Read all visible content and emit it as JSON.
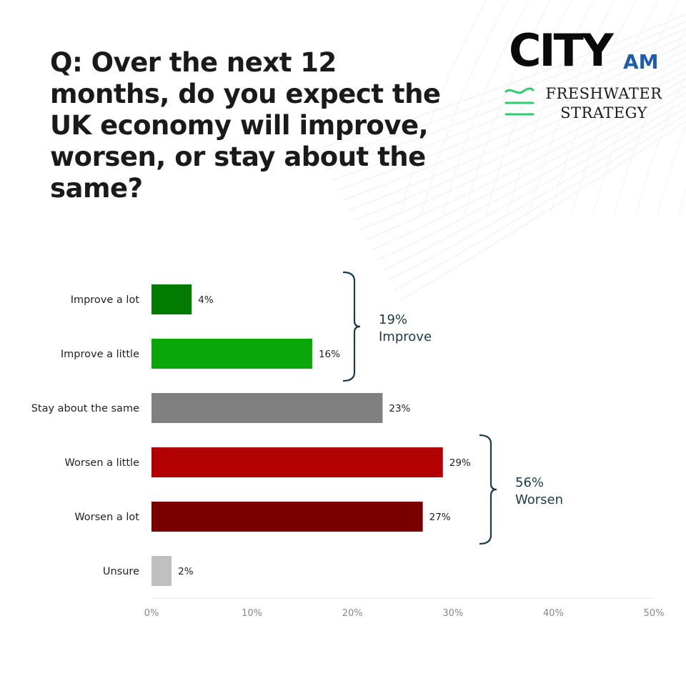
{
  "question": "Q: Over the next 12 months, do you expect the UK economy will improve, worsen, or stay about the same?",
  "logo": {
    "city": "CITY",
    "am": "AM",
    "freshwater_line1": "FRESHWATER",
    "freshwater_line2": "STRATEGY",
    "am_color": "#1f5cae",
    "freshwater_mark_color": "#2ecc71"
  },
  "chart_data": {
    "type": "bar",
    "orientation": "horizontal",
    "categories": [
      "Improve a lot",
      "Improve a little",
      "Stay about the same",
      "Worsen a little",
      "Worsen a lot",
      "Unsure"
    ],
    "values": [
      4,
      16,
      23,
      29,
      27,
      2
    ],
    "value_labels": [
      "4%",
      "16%",
      "23%",
      "29%",
      "27%",
      "2%"
    ],
    "colors": [
      "#037a00",
      "#0ba70a",
      "#808080",
      "#b30000",
      "#7a0000",
      "#c0c0c0"
    ],
    "xlim": [
      0,
      50
    ],
    "x_ticks": [
      "0%",
      "10%",
      "20%",
      "30%",
      "40%",
      "50%"
    ],
    "grid": false,
    "annotations": [
      {
        "group": "improve",
        "line1": "19%",
        "line2": "Improve",
        "covers": [
          "Improve a lot",
          "Improve a little"
        ]
      },
      {
        "group": "worsen",
        "line1": "56%",
        "line2": "Worsen",
        "covers": [
          "Worsen a little",
          "Worsen a lot"
        ]
      }
    ],
    "annotation_color": "#1b3a4b"
  }
}
